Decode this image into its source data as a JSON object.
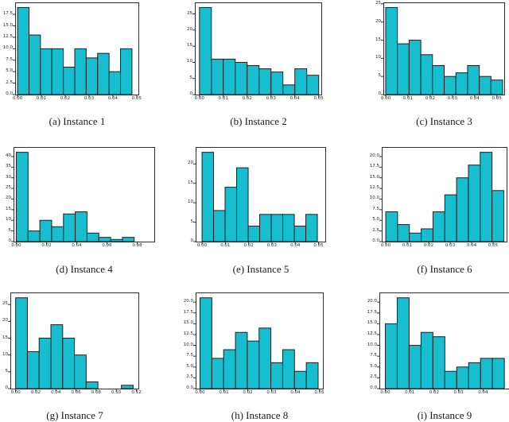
{
  "colors": {
    "bar_fill": "#17becf",
    "bar_edge": "#1f1f1f",
    "axis": "#2e2e2e",
    "caption_text": "#1a1a1a",
    "background": "#ffffff"
  },
  "chart_data": [
    {
      "id": "a",
      "type": "bar",
      "subtype": "histogram",
      "caption": "(a) Instance 1",
      "values": [
        19,
        13,
        10,
        10,
        6,
        10,
        8,
        9,
        5,
        10
      ],
      "bins": {
        "start": 0,
        "end": 0.048
      },
      "x_axis": {
        "min": -0.0007,
        "max": 0.0507,
        "ticks": [
          0,
          0.01,
          0.02,
          0.03,
          0.04,
          0.05
        ],
        "tick_labels": [
          "0.00",
          "0.01",
          "0.02",
          "0.03",
          "0.04",
          "0.05"
        ]
      },
      "y_axis": {
        "top": 19.95,
        "ticks": [
          0,
          2.5,
          5,
          7.5,
          10,
          12.5,
          15,
          17.5
        ],
        "tick_labels": [
          "0.0",
          "2.5",
          "5.0",
          "7.5",
          "10.0",
          "12.5",
          "15.0",
          "17.5"
        ]
      },
      "grid": false,
      "legend": null,
      "xlabel": "",
      "ylabel": ""
    },
    {
      "id": "b",
      "type": "bar",
      "subtype": "histogram",
      "caption": "(b) Instance 2",
      "values": [
        27,
        11,
        11,
        10,
        9,
        8,
        7,
        3,
        8,
        6
      ],
      "bins": {
        "start": 0,
        "end": 0.05
      },
      "x_axis": {
        "min": -0.0016,
        "max": 0.0511,
        "ticks": [
          0,
          0.01,
          0.02,
          0.03,
          0.04,
          0.05
        ],
        "tick_labels": [
          "0.00",
          "0.01",
          "0.02",
          "0.03",
          "0.04",
          "0.05"
        ]
      },
      "y_axis": {
        "top": 28.35,
        "ticks": [
          0,
          5,
          10,
          15,
          20,
          25
        ],
        "tick_labels": [
          "0",
          "5",
          "10",
          "15",
          "20",
          "25"
        ]
      },
      "grid": false,
      "legend": null,
      "xlabel": "",
      "ylabel": ""
    },
    {
      "id": "c",
      "type": "bar",
      "subtype": "histogram",
      "caption": "(c) Instance 3",
      "values": [
        24,
        14,
        15,
        11,
        8,
        5,
        6,
        8,
        5,
        4
      ],
      "bins": {
        "start": 0,
        "end": 0.0526
      },
      "x_axis": {
        "min": -0.0007,
        "max": 0.0533,
        "ticks": [
          0,
          0.01,
          0.02,
          0.03,
          0.04,
          0.05
        ],
        "tick_labels": [
          "0.00",
          "0.01",
          "0.02",
          "0.03",
          "0.04",
          "0.05"
        ]
      },
      "y_axis": {
        "top": 25.2,
        "ticks": [
          0,
          5,
          10,
          15,
          20,
          25
        ],
        "tick_labels": [
          "0",
          "5",
          "10",
          "15",
          "20",
          "25"
        ]
      },
      "grid": false,
      "legend": null,
      "xlabel": "",
      "ylabel": ""
    },
    {
      "id": "d",
      "type": "bar",
      "subtype": "histogram",
      "caption": "(d) Instance 4",
      "values": [
        42,
        5,
        10,
        7,
        13,
        14,
        4,
        2,
        1,
        2
      ],
      "bins": {
        "start": 0,
        "end": 0.078
      },
      "x_axis": {
        "min": -0.0013,
        "max": 0.0913,
        "ticks": [
          0,
          0.02,
          0.04,
          0.06,
          0.08
        ],
        "tick_labels": [
          "0.00",
          "0.02",
          "0.04",
          "0.06",
          "0.08"
        ]
      },
      "y_axis": {
        "top": 44.1,
        "ticks": [
          0,
          5,
          10,
          15,
          20,
          25,
          30,
          35,
          40
        ],
        "tick_labels": [
          "0",
          "5",
          "10",
          "15",
          "20",
          "25",
          "30",
          "35",
          "40"
        ]
      },
      "grid": false,
      "legend": null,
      "xlabel": "",
      "ylabel": ""
    },
    {
      "id": "e",
      "type": "bar",
      "subtype": "histogram",
      "caption": "(e) Instance 5",
      "values": [
        23,
        8,
        14,
        19,
        4,
        7,
        7,
        7,
        4,
        7
      ],
      "bins": {
        "start": 0,
        "end": 0.0495
      },
      "x_axis": {
        "min": -0.0024,
        "max": 0.0529,
        "ticks": [
          0,
          0.01,
          0.02,
          0.03,
          0.04,
          0.05
        ],
        "tick_labels": [
          "0.00",
          "0.01",
          "0.02",
          "0.03",
          "0.04",
          "0.05"
        ]
      },
      "y_axis": {
        "top": 24.15,
        "ticks": [
          0,
          5,
          10,
          15,
          20
        ],
        "tick_labels": [
          "0",
          "5",
          "10",
          "15",
          "20"
        ]
      },
      "grid": false,
      "legend": null,
      "xlabel": "",
      "ylabel": ""
    },
    {
      "id": "f",
      "type": "bar",
      "subtype": "histogram",
      "caption": "(f) Instance 6",
      "values": [
        7,
        4,
        2,
        3,
        7,
        11,
        15,
        18,
        21,
        12
      ],
      "bins": {
        "start": 0,
        "end": 0.055
      },
      "x_axis": {
        "min": -0.0015,
        "max": 0.0563,
        "ticks": [
          0,
          0.01,
          0.02,
          0.03,
          0.04,
          0.05
        ],
        "tick_labels": [
          "0.00",
          "0.01",
          "0.02",
          "0.03",
          "0.04",
          "0.05"
        ]
      },
      "y_axis": {
        "top": 22.05,
        "ticks": [
          0,
          2.5,
          5,
          7.5,
          10,
          12.5,
          15,
          17.5,
          20
        ],
        "tick_labels": [
          "0.0",
          "2.5",
          "5.0",
          "7.5",
          "10.0",
          "12.5",
          "15.0",
          "17.5",
          "20.0"
        ]
      },
      "grid": false,
      "legend": null,
      "xlabel": "",
      "ylabel": ""
    },
    {
      "id": "g",
      "type": "bar",
      "subtype": "histogram",
      "caption": "(g) Instance 7",
      "values": [
        27,
        11,
        15,
        19,
        15,
        10,
        2,
        0,
        0,
        1
      ],
      "bins": {
        "start": 0,
        "end": 0.1168
      },
      "x_axis": {
        "min": -0.0045,
        "max": 0.122,
        "ticks": [
          0,
          0.02,
          0.04,
          0.06,
          0.08,
          0.1,
          0.12
        ],
        "tick_labels": [
          "0.00",
          "0.02",
          "0.04",
          "0.06",
          "0.08",
          "0.10",
          "0.12"
        ]
      },
      "y_axis": {
        "top": 28.35,
        "ticks": [
          0,
          5,
          10,
          15,
          20,
          25
        ],
        "tick_labels": [
          "0",
          "5",
          "10",
          "15",
          "20",
          "25"
        ]
      },
      "grid": false,
      "legend": null,
      "xlabel": "",
      "ylabel": ""
    },
    {
      "id": "h",
      "type": "bar",
      "subtype": "histogram",
      "caption": "(h) Instance 8",
      "values": [
        21,
        7,
        9,
        13,
        11,
        14,
        6,
        9,
        4,
        6
      ],
      "bins": {
        "start": 0,
        "end": 0.0495
      },
      "x_axis": {
        "min": -0.0015,
        "max": 0.0515,
        "ticks": [
          0,
          0.01,
          0.02,
          0.03,
          0.04,
          0.05
        ],
        "tick_labels": [
          "0.00",
          "0.01",
          "0.02",
          "0.03",
          "0.04",
          "0.05"
        ]
      },
      "y_axis": {
        "top": 22.05,
        "ticks": [
          0,
          2.5,
          5,
          7.5,
          10,
          12.5,
          15,
          17.5,
          20
        ],
        "tick_labels": [
          "0.0",
          "2.5",
          "5.0",
          "7.5",
          "10.0",
          "12.5",
          "15.0",
          "17.5",
          "20.0"
        ]
      },
      "grid": false,
      "legend": null,
      "xlabel": "",
      "ylabel": ""
    },
    {
      "id": "i",
      "type": "bar",
      "subtype": "histogram",
      "caption": "(i) Instance 9",
      "values": [
        15,
        21,
        10,
        13,
        12,
        4,
        5,
        6,
        7,
        7
      ],
      "bins": {
        "start": 0,
        "end": 0.0487
      },
      "x_axis": {
        "min": -0.0021,
        "max": 0.0506,
        "ticks": [
          0,
          0.01,
          0.02,
          0.03,
          0.04
        ],
        "tick_labels": [
          "0.00",
          "0.01",
          "0.02",
          "0.03",
          "0.04"
        ]
      },
      "y_axis": {
        "top": 22.05,
        "ticks": [
          0,
          2.5,
          5,
          7.5,
          10,
          12.5,
          15,
          17.5,
          20
        ],
        "tick_labels": [
          "0.0",
          "2.5",
          "5.0",
          "7.5",
          "10.0",
          "12.5",
          "15.0",
          "17.5",
          "20.0"
        ]
      },
      "grid": false,
      "legend": null,
      "xlabel": "",
      "ylabel": ""
    }
  ]
}
